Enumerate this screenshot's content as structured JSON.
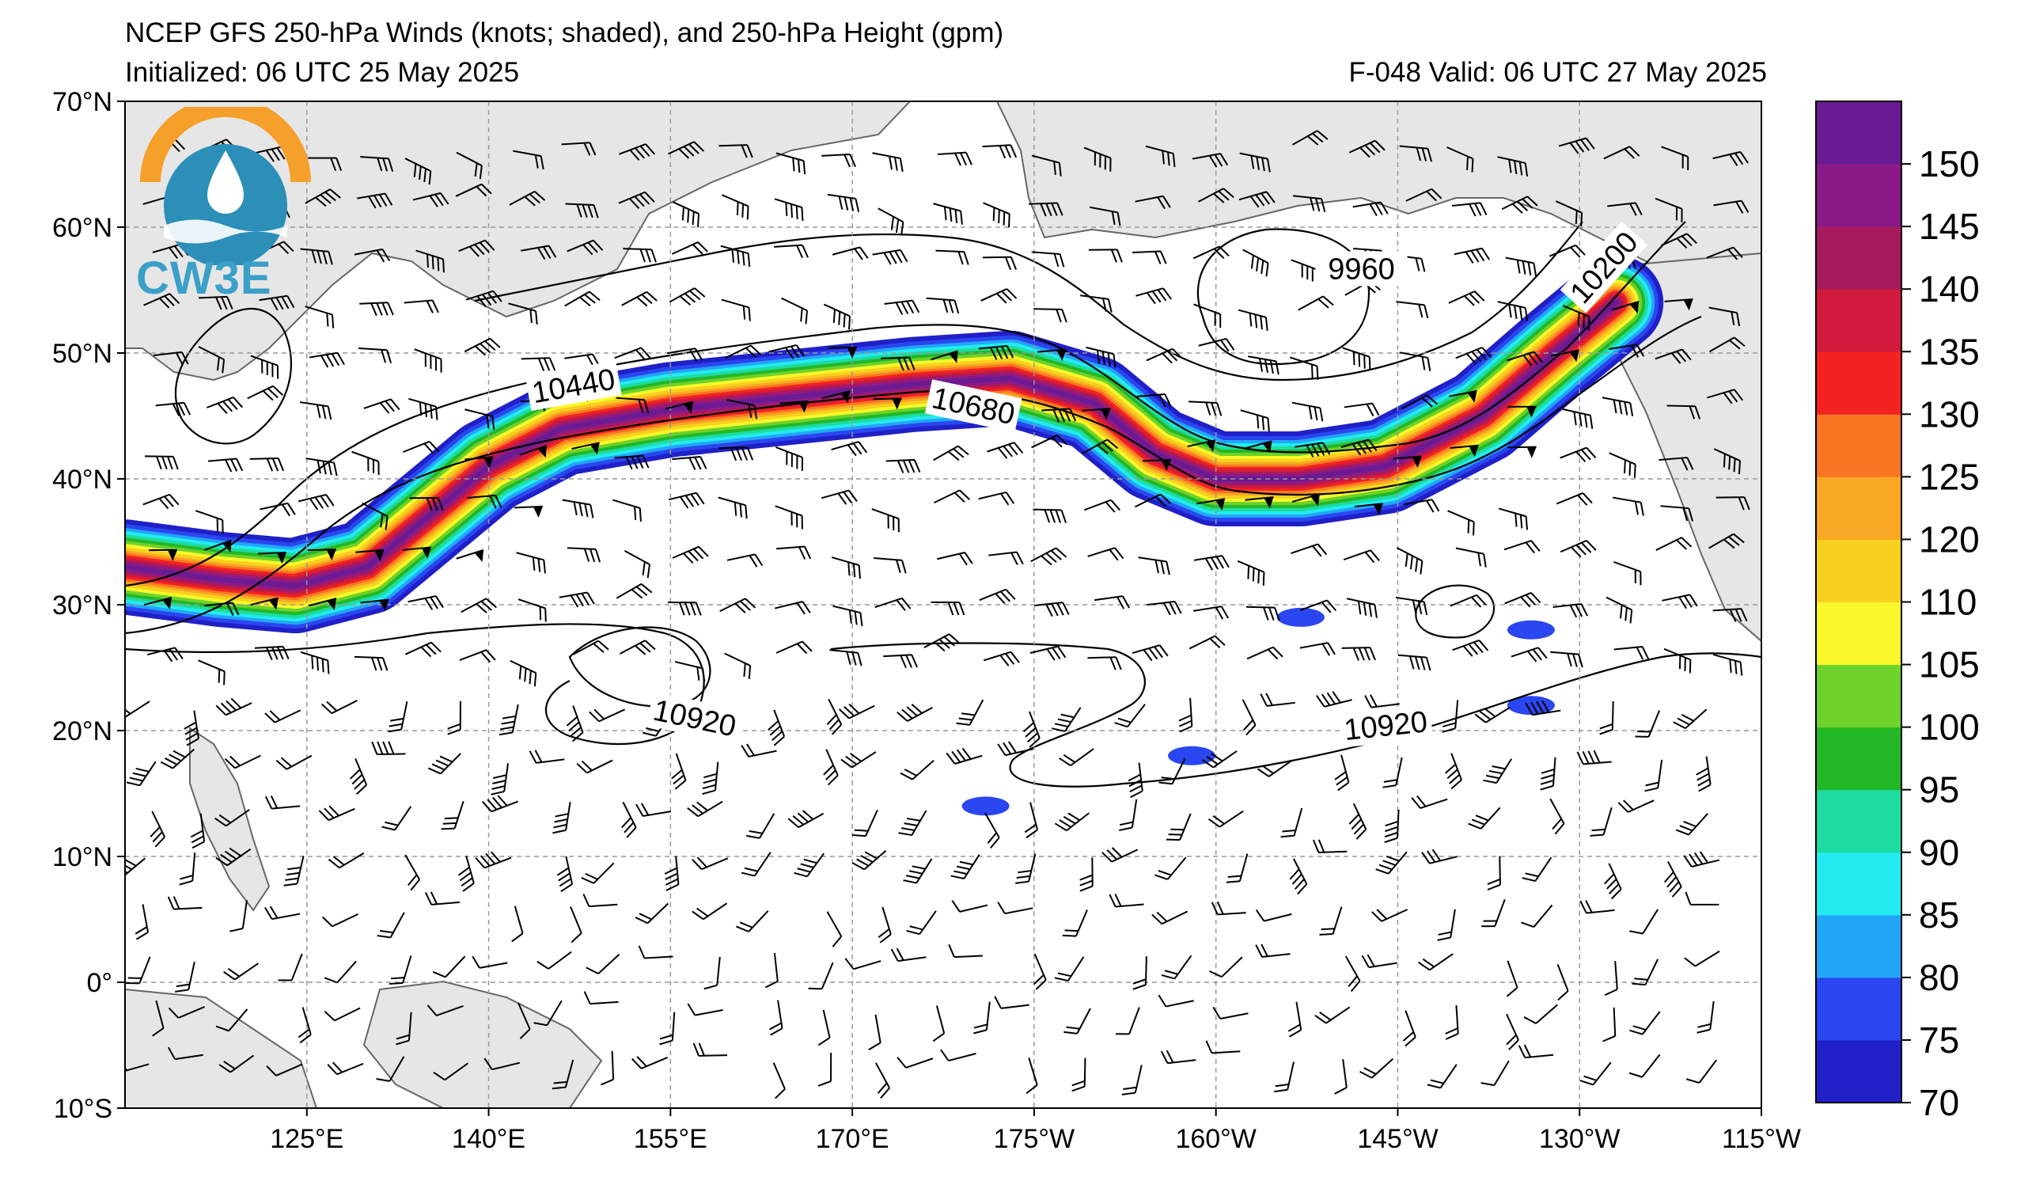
{
  "header": {
    "title": "NCEP GFS 250-hPa Winds (knots; shaded), and 250-hPa Height (gpm)",
    "initialized": "Initialized: 06 UTC 25 May 2025",
    "valid": "F-048  Valid: 06 UTC 27 May 2025"
  },
  "logo": {
    "text": "CW3E",
    "colors": {
      "sun": "#f5a02a",
      "water": "#2b8fb8"
    }
  },
  "map": {
    "lon_range": [
      110,
      245
    ],
    "lat_range": [
      -10,
      70
    ],
    "lat_ticks": [
      {
        "value": 70,
        "label": "70°N"
      },
      {
        "value": 60,
        "label": "60°N"
      },
      {
        "value": 50,
        "label": "50°N"
      },
      {
        "value": 40,
        "label": "40°N"
      },
      {
        "value": 30,
        "label": "30°N"
      },
      {
        "value": 20,
        "label": "20°N"
      },
      {
        "value": 10,
        "label": "10°N"
      },
      {
        "value": 0,
        "label": "0°"
      },
      {
        "value": -10,
        "label": "10°S"
      }
    ],
    "lon_ticks": [
      {
        "value": 125,
        "label": "125°E"
      },
      {
        "value": 140,
        "label": "140°E"
      },
      {
        "value": 155,
        "label": "155°E"
      },
      {
        "value": 170,
        "label": "170°E"
      },
      {
        "value": 185,
        "label": "175°W"
      },
      {
        "value": 200,
        "label": "160°W"
      },
      {
        "value": 215,
        "label": "145°W"
      },
      {
        "value": 230,
        "label": "130°W"
      },
      {
        "value": 245,
        "label": "115°W"
      }
    ],
    "gridlines": true,
    "contour_labels": [
      {
        "text": "10440",
        "lon": 147,
        "lat": 47.4,
        "angle": -10
      },
      {
        "text": "10680",
        "lon": 180,
        "lat": 45.8,
        "angle": 12
      },
      {
        "text": "9960",
        "lon": 212,
        "lat": 56.7,
        "angle": 0
      },
      {
        "text": "10200",
        "lon": 232,
        "lat": 56.8,
        "angle": -48
      },
      {
        "text": "10920",
        "lon": 157,
        "lat": 21.0,
        "angle": 12
      },
      {
        "text": "10920",
        "lon": 214,
        "lat": 20.4,
        "angle": -6
      }
    ],
    "jet_axis": [
      [
        110,
        33
      ],
      [
        118,
        32
      ],
      [
        124,
        31.5
      ],
      [
        130,
        33
      ],
      [
        135,
        37
      ],
      [
        140,
        41
      ],
      [
        146,
        44
      ],
      [
        155,
        45.5
      ],
      [
        165,
        46.5
      ],
      [
        175,
        47.5
      ],
      [
        183,
        48
      ],
      [
        190,
        46
      ],
      [
        195,
        42
      ],
      [
        200,
        40
      ],
      [
        207,
        40
      ],
      [
        214,
        41
      ],
      [
        222,
        45
      ],
      [
        228,
        50
      ],
      [
        233,
        54
      ]
    ]
  },
  "colorbar": {
    "title": "",
    "levels": [
      70,
      75,
      80,
      85,
      90,
      95,
      100,
      105,
      110,
      120,
      125,
      130,
      135,
      140,
      145,
      150
    ],
    "colors": [
      "#2020c8",
      "#2a46f0",
      "#22a6f8",
      "#22ecf0",
      "#1edca0",
      "#22b826",
      "#6ed22a",
      "#f8f82a",
      "#f8d01e",
      "#f8a822",
      "#f87622",
      "#f42220",
      "#d21a3c",
      "#a81a5e",
      "#8a1a88",
      "#6a1a92"
    ]
  }
}
